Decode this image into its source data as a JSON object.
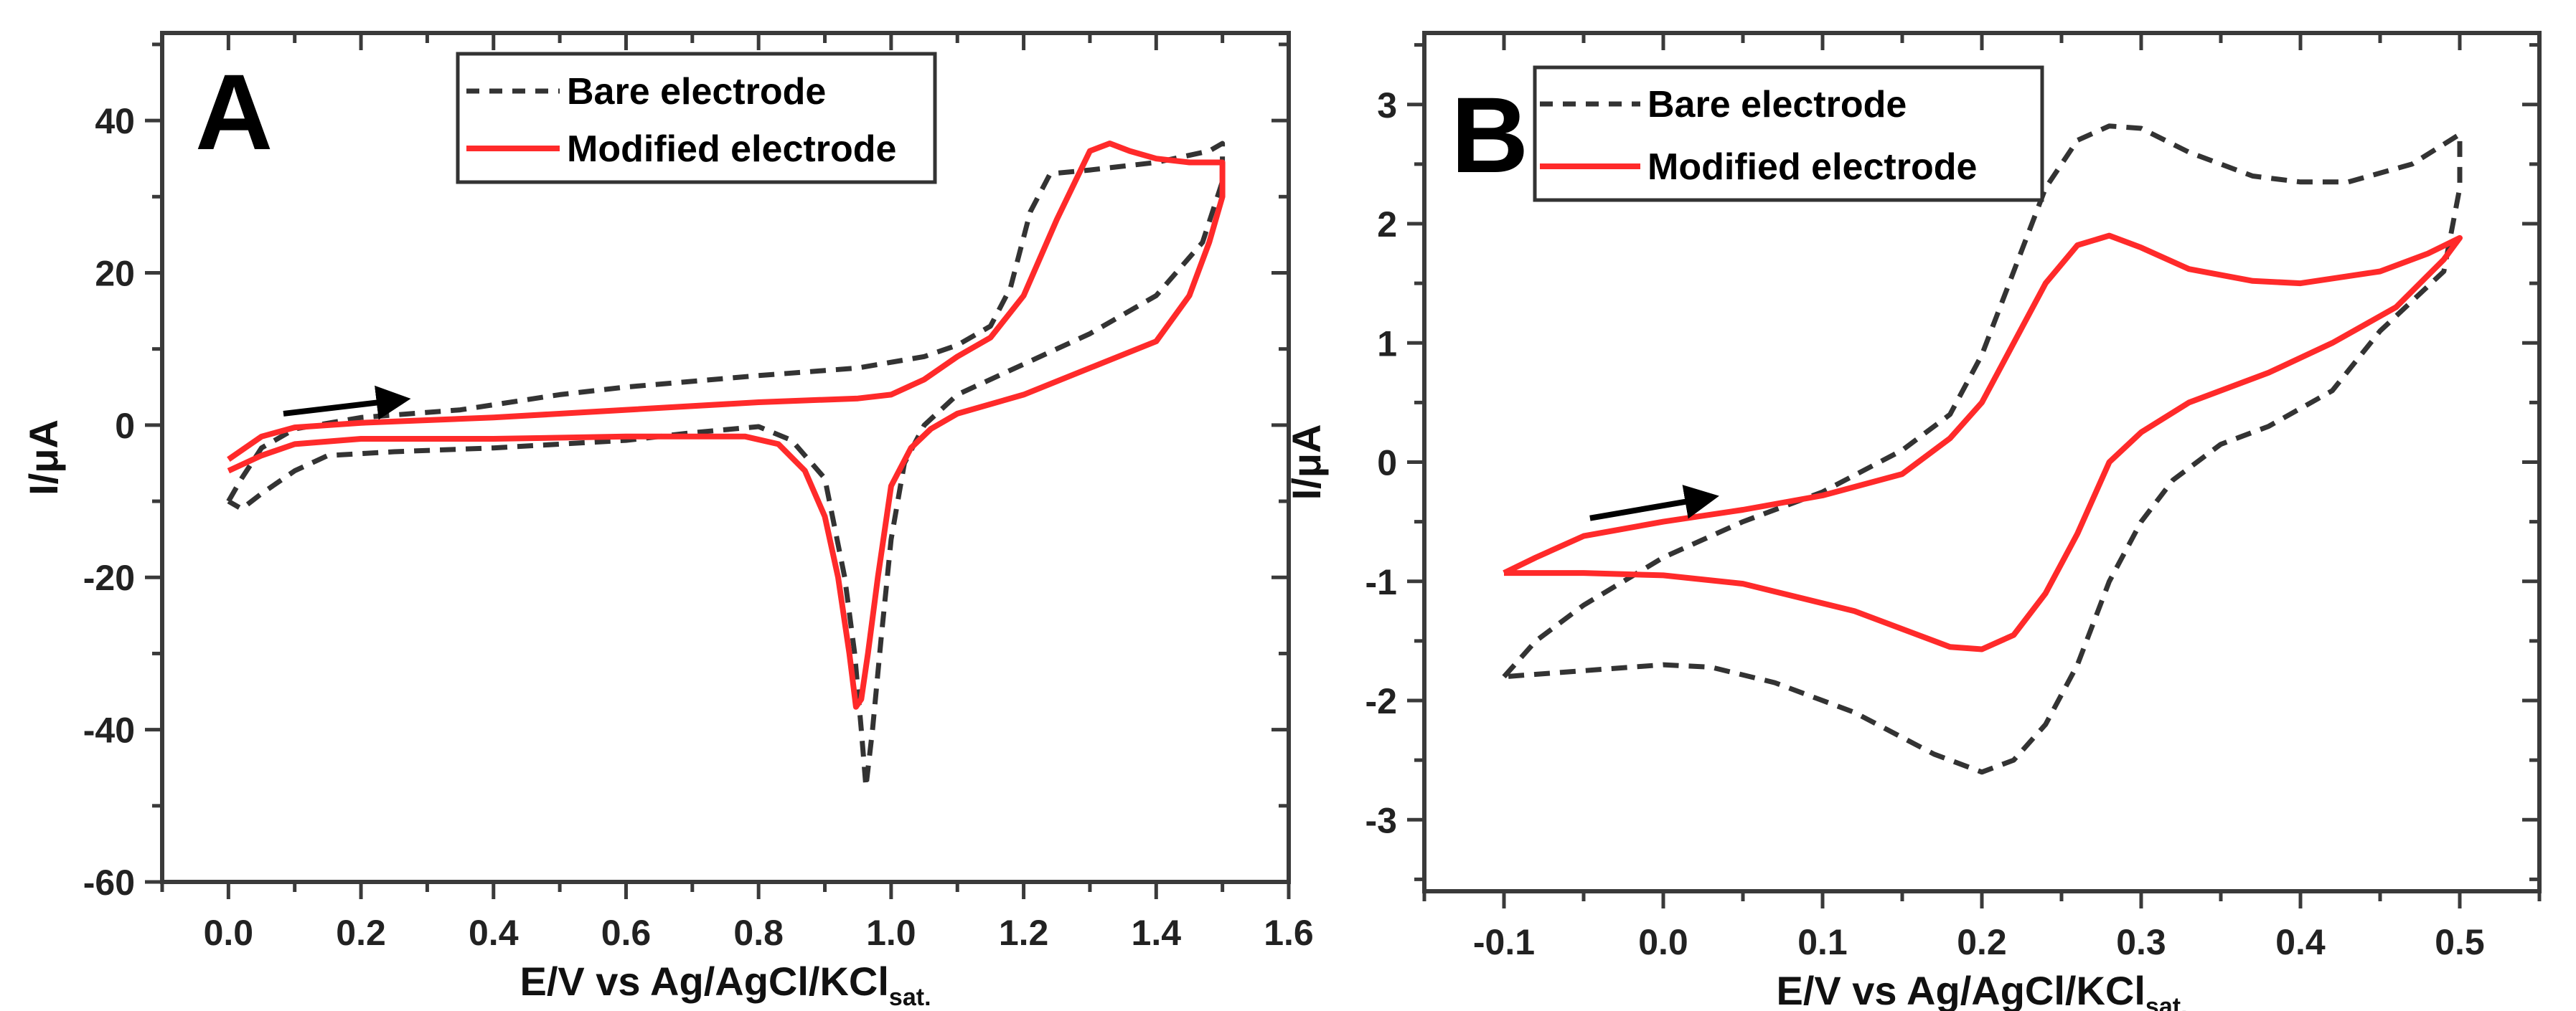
{
  "chart_data": [
    {
      "type": "line",
      "panel_label": "A",
      "xlabel": "E/V vs Ag/AgCl/KCl",
      "xlabel_sub": "sat.",
      "ylabel": "I/μA",
      "xlim": [
        -0.1,
        1.6
      ],
      "ylim": [
        -60,
        51.5
      ],
      "xticks": [
        0.0,
        0.2,
        0.4,
        0.6,
        0.8,
        1.0,
        1.2,
        1.4,
        1.6
      ],
      "xtick_labels": [
        "0.0",
        "0.2",
        "0.4",
        "0.6",
        "0.8",
        "1.0",
        "1.2",
        "1.4",
        "1.6"
      ],
      "yticks": [
        -60,
        -40,
        -20,
        0,
        20,
        40
      ],
      "ytick_labels": [
        "-60",
        "-40",
        "-20",
        "0",
        "20",
        "40"
      ],
      "xminor": 0.1,
      "yminor": 10,
      "legend_position": "top-center",
      "arrow": {
        "from": [
          0.083,
          1.5
        ],
        "to": [
          0.258,
          3.3
        ]
      },
      "series": [
        {
          "name": "Bare electrode",
          "style": "dashed",
          "color": "#333333",
          "points": [
            [
              0,
              -10
            ],
            [
              0.02,
              -7
            ],
            [
              0.05,
              -3
            ],
            [
              0.1,
              -0.5
            ],
            [
              0.2,
              1
            ],
            [
              0.35,
              2
            ],
            [
              0.5,
              4
            ],
            [
              0.6,
              5
            ],
            [
              0.8,
              6.5
            ],
            [
              0.95,
              7.5
            ],
            [
              1.05,
              9
            ],
            [
              1.1,
              10.5
            ],
            [
              1.15,
              13
            ],
            [
              1.18,
              18
            ],
            [
              1.21,
              28
            ],
            [
              1.24,
              33
            ],
            [
              1.3,
              33.5
            ],
            [
              1.4,
              34.5
            ],
            [
              1.48,
              36
            ],
            [
              1.5,
              37
            ],
            [
              1.5,
              32
            ],
            [
              1.47,
              24
            ],
            [
              1.4,
              17
            ],
            [
              1.3,
              12
            ],
            [
              1.2,
              8
            ],
            [
              1.1,
              4
            ],
            [
              1.05,
              0
            ],
            [
              1.02,
              -5
            ],
            [
              1.0,
              -15
            ],
            [
              0.985,
              -28
            ],
            [
              0.972,
              -40
            ],
            [
              0.962,
              -47.5
            ],
            [
              0.955,
              -40
            ],
            [
              0.945,
              -30
            ],
            [
              0.93,
              -20
            ],
            [
              0.9,
              -7
            ],
            [
              0.85,
              -2
            ],
            [
              0.8,
              -0.2
            ],
            [
              0.7,
              -1
            ],
            [
              0.6,
              -2
            ],
            [
              0.4,
              -3
            ],
            [
              0.25,
              -3.5
            ],
            [
              0.15,
              -4
            ],
            [
              0.1,
              -6
            ],
            [
              0.05,
              -9
            ],
            [
              0.02,
              -11
            ],
            [
              0,
              -10
            ]
          ]
        },
        {
          "name": "Modified electrode",
          "style": "solid",
          "color": "#ff2a2a",
          "points": [
            [
              0,
              -4.5
            ],
            [
              0.05,
              -1.5
            ],
            [
              0.1,
              -0.3
            ],
            [
              0.2,
              0.3
            ],
            [
              0.4,
              1
            ],
            [
              0.6,
              2
            ],
            [
              0.8,
              3
            ],
            [
              0.95,
              3.5
            ],
            [
              1.0,
              4
            ],
            [
              1.05,
              6
            ],
            [
              1.1,
              9
            ],
            [
              1.15,
              11.5
            ],
            [
              1.2,
              17
            ],
            [
              1.25,
              27
            ],
            [
              1.3,
              36
            ],
            [
              1.33,
              37
            ],
            [
              1.36,
              36
            ],
            [
              1.4,
              35
            ],
            [
              1.45,
              34.5
            ],
            [
              1.5,
              34.5
            ],
            [
              1.5,
              30
            ],
            [
              1.48,
              24
            ],
            [
              1.45,
              17
            ],
            [
              1.4,
              11
            ],
            [
              1.3,
              7.5
            ],
            [
              1.2,
              4
            ],
            [
              1.1,
              1.5
            ],
            [
              1.06,
              -0.5
            ],
            [
              1.03,
              -3
            ],
            [
              1.0,
              -8
            ],
            [
              0.98,
              -20
            ],
            [
              0.965,
              -30
            ],
            [
              0.955,
              -36
            ],
            [
              0.947,
              -37
            ],
            [
              0.937,
              -30
            ],
            [
              0.92,
              -20
            ],
            [
              0.9,
              -12
            ],
            [
              0.87,
              -6
            ],
            [
              0.83,
              -2.5
            ],
            [
              0.78,
              -1.5
            ],
            [
              0.6,
              -1.5
            ],
            [
              0.4,
              -1.8
            ],
            [
              0.2,
              -1.8
            ],
            [
              0.1,
              -2.5
            ],
            [
              0.05,
              -4
            ],
            [
              0,
              -6
            ]
          ]
        }
      ]
    },
    {
      "type": "line",
      "panel_label": "B",
      "xlabel": "E/V vs Ag/AgCl/KCl",
      "xlabel_sub": "sat.",
      "ylabel": "I/μA",
      "xlim": [
        -0.15,
        0.55
      ],
      "ylim": [
        -3.6,
        3.6
      ],
      "xticks": [
        -0.1,
        0.0,
        0.1,
        0.2,
        0.3,
        0.4,
        0.5
      ],
      "xtick_labels": [
        "-0.1",
        "0.0",
        "0.1",
        "0.2",
        "0.3",
        "0.4",
        "0.5"
      ],
      "yticks": [
        -3,
        -2,
        -1,
        0,
        1,
        2,
        3
      ],
      "ytick_labels": [
        "-3",
        "-2",
        "-1",
        "0",
        "1",
        "2",
        "3"
      ],
      "xminor": 0.05,
      "yminor": 0.5,
      "legend_position": "top-left",
      "arrow": {
        "from": [
          -0.046,
          -0.47
        ],
        "to": [
          0.028,
          -0.3
        ]
      },
      "series": [
        {
          "name": "Bare electrode",
          "style": "dashed",
          "color": "#333333",
          "points": [
            [
              -0.1,
              -1.8
            ],
            [
              -0.08,
              -1.5
            ],
            [
              -0.05,
              -1.2
            ],
            [
              0,
              -0.8
            ],
            [
              0.05,
              -0.5
            ],
            [
              0.1,
              -0.25
            ],
            [
              0.15,
              0.1
            ],
            [
              0.18,
              0.4
            ],
            [
              0.2,
              0.9
            ],
            [
              0.22,
              1.6
            ],
            [
              0.24,
              2.3
            ],
            [
              0.26,
              2.7
            ],
            [
              0.28,
              2.82
            ],
            [
              0.3,
              2.8
            ],
            [
              0.33,
              2.6
            ],
            [
              0.37,
              2.4
            ],
            [
              0.4,
              2.35
            ],
            [
              0.43,
              2.35
            ],
            [
              0.47,
              2.5
            ],
            [
              0.5,
              2.75
            ],
            [
              0.5,
              2.3
            ],
            [
              0.49,
              1.6
            ],
            [
              0.45,
              1.1
            ],
            [
              0.42,
              0.6
            ],
            [
              0.38,
              0.3
            ],
            [
              0.35,
              0.15
            ],
            [
              0.32,
              -0.15
            ],
            [
              0.3,
              -0.5
            ],
            [
              0.28,
              -1.0
            ],
            [
              0.26,
              -1.7
            ],
            [
              0.24,
              -2.2
            ],
            [
              0.22,
              -2.5
            ],
            [
              0.2,
              -2.6
            ],
            [
              0.17,
              -2.45
            ],
            [
              0.12,
              -2.1
            ],
            [
              0.07,
              -1.85
            ],
            [
              0.03,
              -1.72
            ],
            [
              0,
              -1.7
            ],
            [
              -0.05,
              -1.75
            ],
            [
              -0.1,
              -1.8
            ]
          ]
        },
        {
          "name": "Modified electrode",
          "style": "solid",
          "color": "#ff2a2a",
          "points": [
            [
              -0.1,
              -0.93
            ],
            [
              -0.08,
              -0.8
            ],
            [
              -0.05,
              -0.62
            ],
            [
              0,
              -0.5
            ],
            [
              0.05,
              -0.4
            ],
            [
              0.1,
              -0.28
            ],
            [
              0.15,
              -0.1
            ],
            [
              0.18,
              0.2
            ],
            [
              0.2,
              0.5
            ],
            [
              0.22,
              1.0
            ],
            [
              0.24,
              1.5
            ],
            [
              0.26,
              1.82
            ],
            [
              0.28,
              1.9
            ],
            [
              0.3,
              1.8
            ],
            [
              0.33,
              1.62
            ],
            [
              0.37,
              1.52
            ],
            [
              0.4,
              1.5
            ],
            [
              0.45,
              1.6
            ],
            [
              0.48,
              1.75
            ],
            [
              0.5,
              1.88
            ],
            [
              0.49,
              1.7
            ],
            [
              0.46,
              1.3
            ],
            [
              0.42,
              1.0
            ],
            [
              0.38,
              0.75
            ],
            [
              0.33,
              0.5
            ],
            [
              0.3,
              0.25
            ],
            [
              0.28,
              0.0
            ],
            [
              0.26,
              -0.6
            ],
            [
              0.24,
              -1.1
            ],
            [
              0.22,
              -1.45
            ],
            [
              0.2,
              -1.57
            ],
            [
              0.18,
              -1.55
            ],
            [
              0.12,
              -1.25
            ],
            [
              0.05,
              -1.02
            ],
            [
              0,
              -0.95
            ],
            [
              -0.05,
              -0.93
            ],
            [
              -0.1,
              -0.93
            ]
          ]
        }
      ]
    }
  ]
}
